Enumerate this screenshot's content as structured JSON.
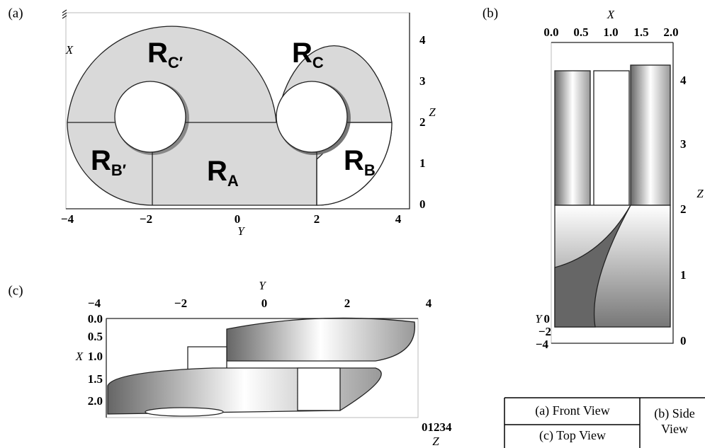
{
  "panels": [
    {
      "label": "(a)",
      "axis_labels": {
        "horizontal": "Y",
        "vertical": "X",
        "depth": "Z"
      },
      "horizontal_ticks": [
        "−4",
        "−2",
        "0",
        "2",
        "4"
      ],
      "depth_ticks": [
        "0",
        "1",
        "2",
        "3",
        "4"
      ],
      "regions": [
        {
          "main": "R",
          "sub": "C′"
        },
        {
          "main": "R",
          "sub": "C"
        },
        {
          "main": "R",
          "sub": "B′"
        },
        {
          "main": "R",
          "sub": "A"
        },
        {
          "main": "R",
          "sub": "B"
        }
      ]
    },
    {
      "label": "(b)",
      "axis_labels": {
        "horizontal": "X",
        "vertical": "Z",
        "depth": "Y"
      },
      "horizontal_ticks": [
        "0.0",
        "0.5",
        "1.0",
        "1.5",
        "2.0"
      ],
      "vertical_ticks": [
        "0",
        "1",
        "2",
        "3",
        "4"
      ],
      "depth_ticks": [
        "0",
        "−2",
        "−4"
      ]
    },
    {
      "label": "(c)",
      "axis_labels": {
        "horizontal": "Y",
        "vertical": "X",
        "depth": "Z"
      },
      "horizontal_ticks": [
        "−4",
        "−2",
        "0",
        "2",
        "4"
      ],
      "vertical_ticks": [
        "0.0",
        "0.5",
        "1.0",
        "1.5",
        "2.0"
      ],
      "depth_ticks": [
        "01234"
      ]
    }
  ],
  "table": {
    "rows": [
      [
        "(a) Front View",
        "(b) Side View"
      ],
      [
        "(c) Top View"
      ]
    ]
  }
}
